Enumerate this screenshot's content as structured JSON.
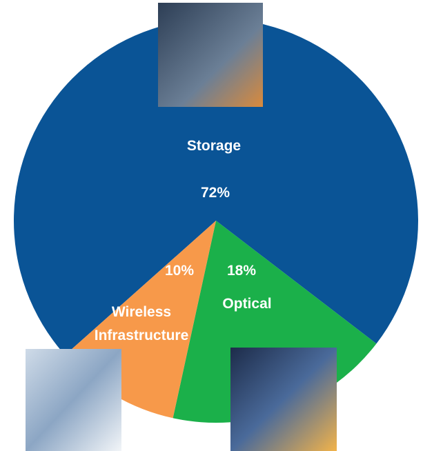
{
  "chart_data": {
    "type": "pie",
    "categories": [
      "Storage",
      "Optical",
      "Wireless Infrastructure"
    ],
    "values": [
      72,
      18,
      10
    ],
    "value_labels": [
      "72%",
      "18%",
      "10%"
    ],
    "colors": [
      "#0a5496",
      "#1bb04a",
      "#f7994a"
    ]
  }
}
